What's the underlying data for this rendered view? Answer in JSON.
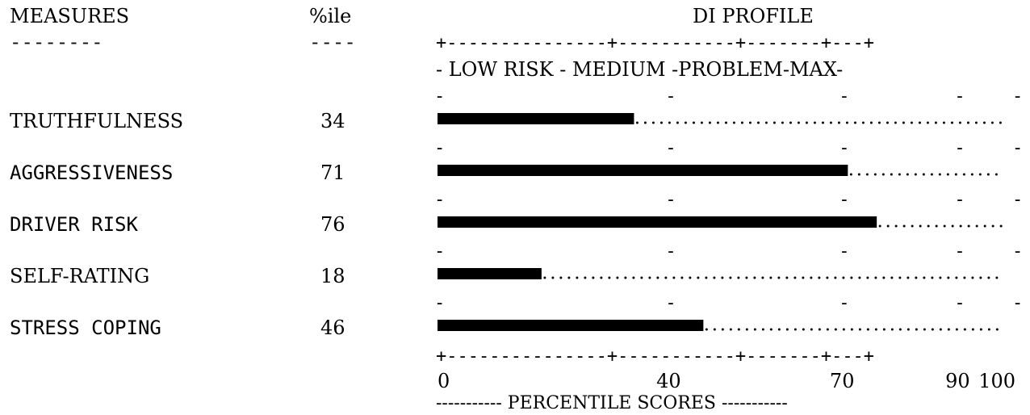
{
  "chart_data": {
    "type": "bar",
    "title": "DI PROFILE",
    "categories": [
      "TRUTHFULNESS",
      "AGGRESSIVENESS",
      "DRIVER RISK",
      "SELF-RATING",
      "STRESS COPING"
    ],
    "values": [
      34,
      71,
      76,
      18,
      46
    ],
    "xlim": [
      0,
      100
    ],
    "x_ticks": [
      "0",
      "40",
      "70",
      "90",
      "100"
    ],
    "x_tick_values": [
      0,
      40,
      70,
      90,
      100
    ],
    "zones": [
      {
        "label": "LOW RISK",
        "from": 0,
        "to": 40
      },
      {
        "label": "MEDIUM",
        "from": 40,
        "to": 70
      },
      {
        "label": "PROBLEM",
        "from": 70,
        "to": 90
      },
      {
        "label": "MAX",
        "from": 90,
        "to": 100
      }
    ],
    "xlabel": "PERCENTILE SCORES",
    "column_headers": {
      "measures": "MEASURES",
      "percentile": "%ile"
    }
  },
  "text": {
    "measures_header": "MEASURES",
    "percentile_header": "%ile",
    "profile_header": "DI PROFILE",
    "zone_header_line": "-    LOW RISK    -   MEDIUM   -PROBLEM-MAX-",
    "axis_line": "+---------------+-----------+-------+---+",
    "tick_labels": "0              40          70      90 100",
    "footer_line": "----------- PERCENTILE SCORES -----------",
    "left_dashes": "--------",
    "pct_dashes": "----"
  },
  "rows": [
    {
      "label": "TRUTHFULNESS",
      "value": "34",
      "bar": "■■■■■■■■■■■■■■.. -.........-.......-...-"
    },
    {
      "label": "AGGRESSIVENESS",
      "value": "71",
      "bar": "■■■■■■■■■■■■■■■■■■■■■■■■■■■■■■.......-...-"
    },
    {
      "label": "DRIVER RISK",
      "value": "76",
      "bar": "■■■■■■■■■■■■■■■■■■■■■■■■■■■■■■■■.....-...-"
    },
    {
      "label": "SELF-RATING",
      "value": "18",
      "bar": "■■■■■■■■........-.........-.......-...-"
    },
    {
      "label": "STRESS COPING",
      "value": "46",
      "bar": "■■■■■■■■■■■■■■■■■■.........-.......-...-"
    }
  ]
}
